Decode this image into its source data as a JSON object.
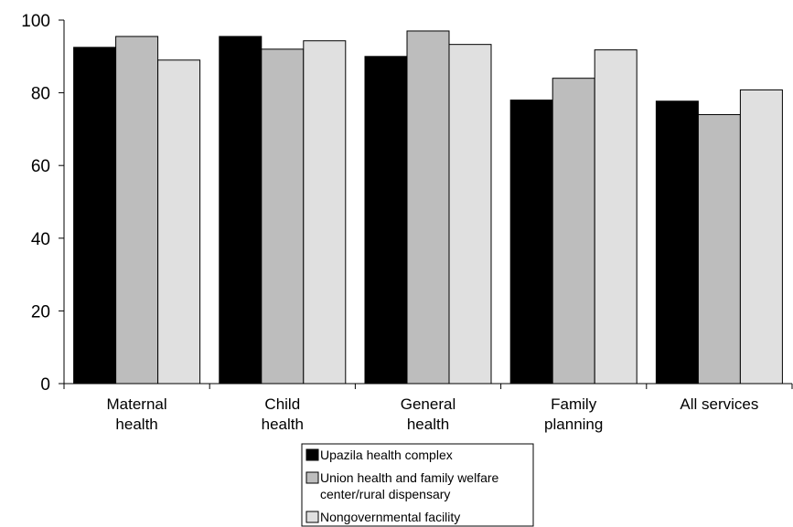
{
  "chart_data": {
    "type": "bar",
    "categories": [
      [
        "Maternal",
        "health"
      ],
      [
        "Child",
        "health"
      ],
      [
        "General",
        "health"
      ],
      [
        "Family",
        "planning"
      ],
      [
        "All services"
      ]
    ],
    "series": [
      {
        "name": [
          "Upazila health complex"
        ],
        "color": "#000000",
        "values": [
          92.5,
          95.5,
          90,
          78,
          77.7
        ]
      },
      {
        "name": [
          "Union health and family welfare",
          "center/rural dispensary"
        ],
        "color": "#bdbdbd",
        "values": [
          95.5,
          92,
          97,
          84,
          74
        ]
      },
      {
        "name": [
          "Nongovernmental facility"
        ],
        "color": "#e0e0e0",
        "values": [
          89,
          94.3,
          93.3,
          91.8,
          80.8
        ]
      }
    ],
    "yticks": [
      "0",
      "20",
      "40",
      "60",
      "80",
      "100"
    ],
    "ylim": [
      0,
      100
    ],
    "grid": false,
    "legend_position": "bottom"
  }
}
